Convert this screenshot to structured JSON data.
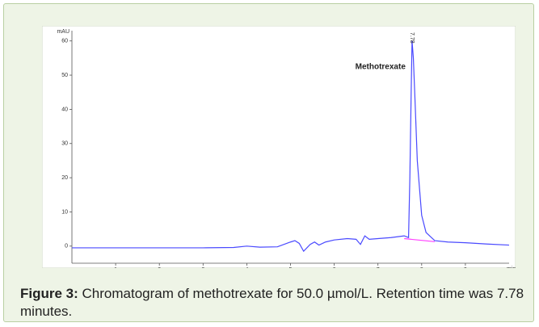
{
  "chart_data": {
    "type": "line",
    "y_axis_label": "mAU",
    "x_axis_label": "min",
    "annotation": "Methotrexate",
    "peak_label": "7.78",
    "xlim": [
      0,
      10
    ],
    "ylim": [
      -5,
      63
    ],
    "xticks": [
      1,
      2,
      3,
      4,
      5,
      6,
      7,
      8,
      9
    ],
    "yticks": [
      0,
      10,
      20,
      30,
      40,
      50,
      60
    ],
    "series": [
      {
        "color": "#4a4aff",
        "x": [
          0,
          1,
          2,
          3,
          3.7,
          4.0,
          4.3,
          4.7,
          5.0,
          5.1,
          5.2,
          5.3,
          5.45,
          5.55,
          5.65,
          5.8,
          6.0,
          6.3,
          6.5,
          6.6,
          6.7,
          6.8,
          7.0,
          7.3,
          7.6,
          7.7,
          7.73,
          7.76,
          7.78,
          7.81,
          7.85,
          7.9,
          8.0,
          8.1,
          8.3,
          8.6,
          9.0,
          9.5,
          10.0
        ],
        "values": [
          -0.5,
          -0.5,
          -0.5,
          -0.5,
          -0.4,
          0,
          -0.3,
          -0.2,
          1.2,
          1.6,
          0.8,
          -1.5,
          0.5,
          1.2,
          0.3,
          1.2,
          1.8,
          2.2,
          2.0,
          0.5,
          3.0,
          2.0,
          2.2,
          2.5,
          3.0,
          2.5,
          20,
          45,
          60,
          55,
          42,
          25,
          9,
          4,
          1.6,
          1.2,
          1.0,
          0.6,
          0.3
        ]
      },
      {
        "color": "#ff40ff",
        "x": [
          7.6,
          8.3
        ],
        "values": [
          2.2,
          1.3
        ]
      }
    ]
  },
  "caption": {
    "label": "Figure 3:",
    "text": "Chromatogram of methotrexate for 50.0 µmol/L. Retention time was 7.78 minutes."
  }
}
